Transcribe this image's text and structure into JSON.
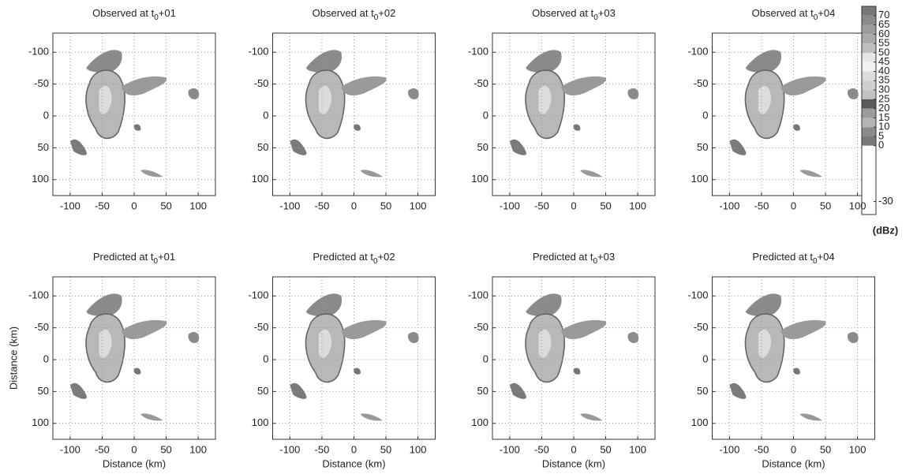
{
  "chart_data": [
    {
      "type": "image",
      "title_parts": [
        "Observed at t",
        "0",
        "+01"
      ],
      "xlim": [
        -127,
        127
      ],
      "ylim": [
        125,
        -130
      ],
      "xticks": [
        -100,
        -50,
        0,
        50,
        100
      ],
      "yticks": [
        -100,
        -50,
        0,
        50,
        100
      ],
      "grid": true
    },
    {
      "type": "image",
      "title_parts": [
        "Observed at t",
        "0",
        "+02"
      ],
      "xlim": [
        -127,
        127
      ],
      "ylim": [
        125,
        -130
      ],
      "xticks": [
        -100,
        -50,
        0,
        50,
        100
      ],
      "yticks": [
        -100,
        -50,
        0,
        50,
        100
      ],
      "grid": true
    },
    {
      "type": "image",
      "title_parts": [
        "Observed at t",
        "0",
        "+03"
      ],
      "xlim": [
        -127,
        127
      ],
      "ylim": [
        125,
        -130
      ],
      "xticks": [
        -100,
        -50,
        0,
        50,
        100
      ],
      "yticks": [
        -100,
        -50,
        0,
        50,
        100
      ],
      "grid": true
    },
    {
      "type": "image",
      "title_parts": [
        "Observed at t",
        "0",
        "+04"
      ],
      "xlim": [
        -127,
        127
      ],
      "ylim": [
        125,
        -130
      ],
      "xticks": [
        -100,
        -50,
        0,
        50,
        100
      ],
      "yticks": [
        -100,
        -50,
        0,
        50,
        100
      ],
      "grid": true
    },
    {
      "type": "image",
      "title_parts": [
        "Predicted at t",
        "0",
        "+01"
      ],
      "xlabel": "Distance (km)",
      "ylabel": "Distance (km)",
      "xlim": [
        -127,
        127
      ],
      "ylim": [
        125,
        -130
      ],
      "xticks": [
        -100,
        -50,
        0,
        50,
        100
      ],
      "yticks": [
        -100,
        -50,
        0,
        50,
        100
      ],
      "grid": true
    },
    {
      "type": "image",
      "title_parts": [
        "Predicted at t",
        "0",
        "+02"
      ],
      "xlabel": "Distance (km)",
      "xlim": [
        -127,
        127
      ],
      "ylim": [
        125,
        -130
      ],
      "xticks": [
        -100,
        -50,
        0,
        50,
        100
      ],
      "yticks": [
        -100,
        -50,
        0,
        50,
        100
      ],
      "grid": true
    },
    {
      "type": "image",
      "title_parts": [
        "Predicted at t",
        "0",
        "+03"
      ],
      "xlabel": "Distance (km)",
      "xlim": [
        -127,
        127
      ],
      "ylim": [
        125,
        -130
      ],
      "xticks": [
        -100,
        -50,
        0,
        50,
        100
      ],
      "yticks": [
        -100,
        -50,
        0,
        50,
        100
      ],
      "grid": true
    },
    {
      "type": "image",
      "title_parts": [
        "Predicted at t",
        "0",
        "+04"
      ],
      "xlabel": "Distance (km)",
      "xlim": [
        -127,
        127
      ],
      "ylim": [
        125,
        -130
      ],
      "xticks": [
        -100,
        -50,
        0,
        50,
        100
      ],
      "yticks": [
        -100,
        -50,
        0,
        50,
        100
      ],
      "grid": true
    }
  ],
  "colorbar": {
    "label": "(dBz)",
    "lim": [
      -37,
      75
    ],
    "ticks": [
      70,
      65,
      60,
      55,
      50,
      45,
      40,
      35,
      30,
      25,
      20,
      15,
      10,
      5,
      0,
      -30
    ],
    "colors": [
      "#777777",
      "#8a8a8a",
      "#9c9c9c",
      "#aaaaaa",
      "#bdbdbd",
      "#e6e6e6",
      "#f2f2f2",
      "#dcdcdc",
      "#cfcfcf",
      "#c2c2c2",
      "#5a5a5a",
      "#9a9a9a",
      "#b4b4b4",
      "#8c8c8c",
      "#7a7a7a",
      "#ffffff"
    ]
  }
}
